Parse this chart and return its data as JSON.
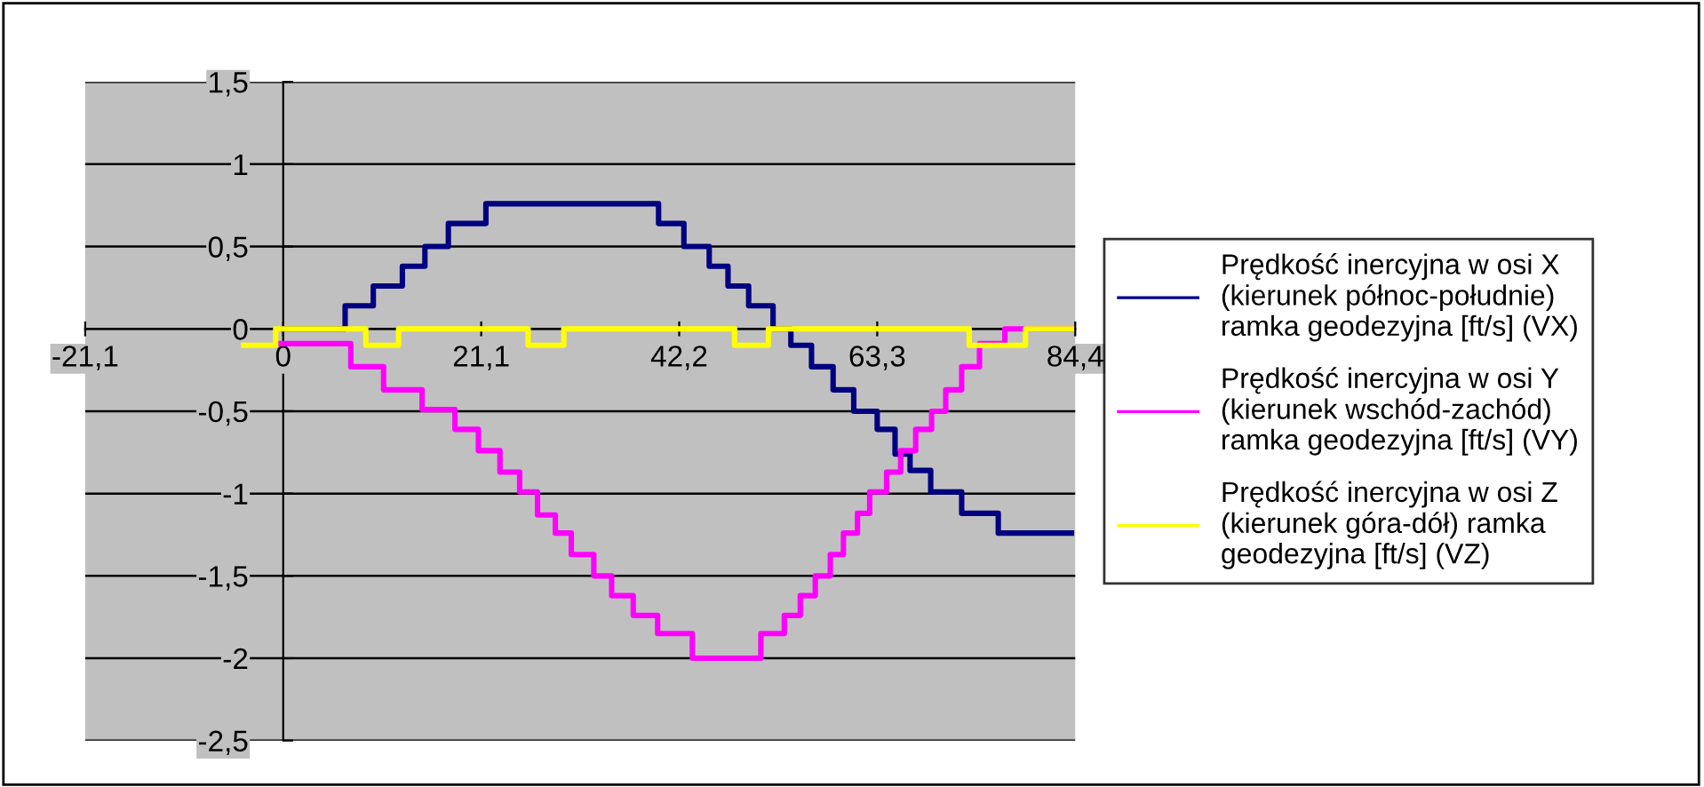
{
  "chart_data": {
    "type": "step",
    "xlim": [
      -21.1,
      84.4
    ],
    "xticks": [
      {
        "value": -21.1,
        "label": "-21,1"
      },
      0,
      {
        "value": 21.1,
        "label": "21,1"
      },
      {
        "value": 42.2,
        "label": "42,2"
      },
      {
        "value": 63.3,
        "label": "63,3"
      },
      {
        "value": 84.4,
        "label": "84,4"
      }
    ],
    "ylim": [
      -2.5,
      1.5
    ],
    "yticks": [
      {
        "value": -2.5,
        "label": "-2,5"
      },
      -2,
      {
        "value": -1.5,
        "label": "-1,5"
      },
      -1,
      {
        "value": -0.5,
        "label": "-0,5"
      },
      0,
      {
        "value": 0.5,
        "label": "0,5"
      },
      1,
      {
        "value": 1.5,
        "label": "1,5"
      }
    ],
    "grid": "y",
    "legend": "right",
    "series": [
      {
        "name": "Prędkość inercyjna w osi X\n(kierunek północ-południe)\nramka geodezyjna [ft/s] (VX)",
        "color": "#000080",
        "x": [
          0,
          6.6,
          9.6,
          12.7,
          15.1,
          17.6,
          21.6,
          40.0,
          42.7,
          45.4,
          47.4,
          49.6,
          52.2,
          54.1,
          56.3,
          58.6,
          60.8,
          63.3,
          65.2,
          66.8,
          69.0,
          72.3,
          76.2,
          84.0
        ],
        "values": [
          0,
          0.14,
          0.26,
          0.38,
          0.5,
          0.64,
          0.76,
          0.64,
          0.5,
          0.38,
          0.26,
          0.14,
          0,
          -0.1,
          -0.23,
          -0.37,
          -0.5,
          -0.61,
          -0.76,
          -0.86,
          -0.99,
          -1.12,
          -1.24,
          -1.24
        ]
      },
      {
        "name": "Prędkość inercyjna w osi Y\n(kierunek wschód-zachód)\nramka geodezyjna [ft/s] (VY)",
        "color": "#ff00ff",
        "x": [
          -0.6,
          7.2,
          10.7,
          14.8,
          18.3,
          20.8,
          23.1,
          25.2,
          27.1,
          29.0,
          30.7,
          33.1,
          35.0,
          37.3,
          39.9,
          43.6,
          50.9,
          53.4,
          55.1,
          56.7,
          58.3,
          59.7,
          61.2,
          62.5,
          64.3,
          65.8,
          67.4,
          69.1,
          70.6,
          72.3,
          74.2,
          76.9,
          84.0
        ],
        "values": [
          -0.09,
          -0.23,
          -0.37,
          -0.49,
          -0.61,
          -0.74,
          -0.87,
          -0.99,
          -1.13,
          -1.24,
          -1.37,
          -1.5,
          -1.62,
          -1.74,
          -1.85,
          -2.0,
          -1.85,
          -1.74,
          -1.62,
          -1.5,
          -1.37,
          -1.24,
          -1.12,
          -0.99,
          -0.87,
          -0.74,
          -0.61,
          -0.5,
          -0.37,
          -0.23,
          -0.09,
          0,
          0
        ]
      },
      {
        "name": "Prędkość inercyjna w osi Z\n(kierunek góra-dół) ramka\ngeodezyjna [ft/s] (VZ)",
        "color": "#ffff00",
        "x": [
          -4.2,
          -0.8,
          8.8,
          12.3,
          26.1,
          29.9,
          48.1,
          51.7,
          73.1,
          79.1,
          84.0
        ],
        "values": [
          -0.1,
          0,
          -0.1,
          0,
          -0.1,
          0,
          -0.1,
          0,
          -0.1,
          0,
          0
        ]
      }
    ]
  }
}
